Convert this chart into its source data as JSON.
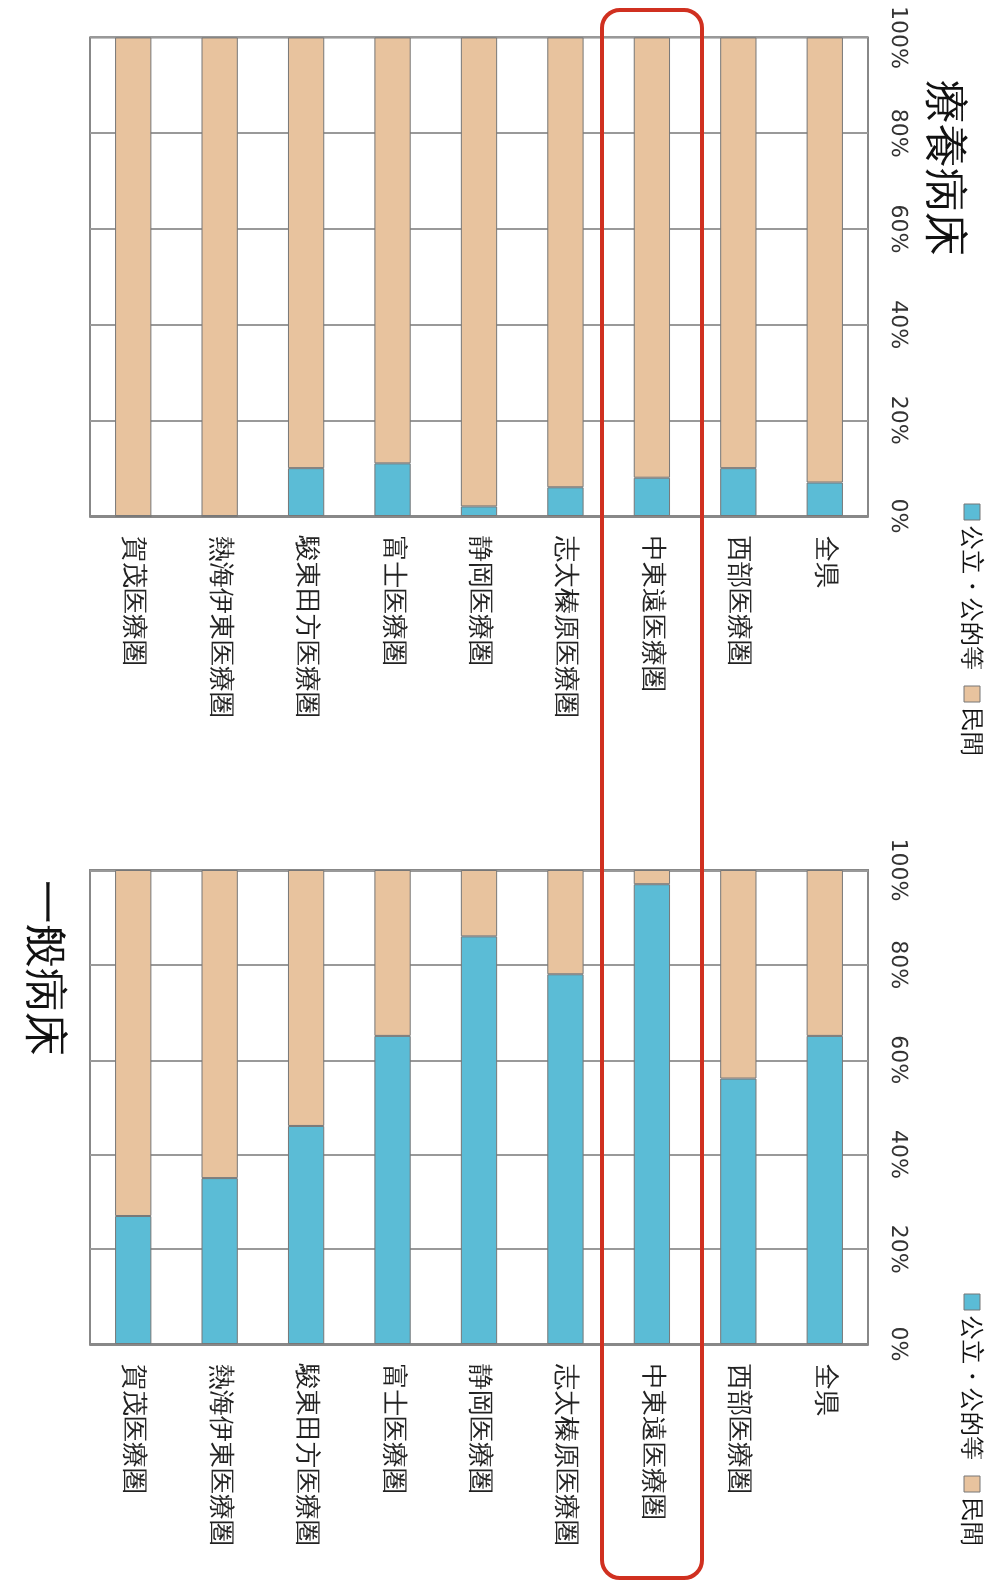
{
  "chart_data": [
    {
      "type": "bar",
      "title": "療養病床",
      "categories": [
        "賀茂医療圏",
        "熱海伊東医療圏",
        "駿東田方医療圏",
        "富士医療圏",
        "静岡医療圏",
        "志太榛原医療圏",
        "中東遠医療圏",
        "西部医療圏",
        "全県"
      ],
      "series": [
        {
          "name": "公立・公的等",
          "color": "#5bbcd6",
          "values": [
            0,
            0,
            10,
            11,
            2,
            6,
            8,
            10,
            7
          ]
        },
        {
          "name": "民間",
          "color": "#e8c39e",
          "values": [
            100,
            100,
            90,
            89,
            98,
            94,
            92,
            90,
            93
          ]
        }
      ],
      "stacked": true,
      "ylim": [
        0,
        100
      ],
      "yticks": [
        {
          "value": 0,
          "label": "0%"
        },
        {
          "value": 20,
          "label": "20%"
        },
        {
          "value": 40,
          "label": "40%"
        },
        {
          "value": 60,
          "label": "60%"
        },
        {
          "value": 80,
          "label": "80%"
        },
        {
          "value": 100,
          "label": "100%"
        }
      ],
      "grid": "y",
      "legend": "right"
    },
    {
      "type": "bar",
      "title": "一般病床",
      "categories": [
        "賀茂医療圏",
        "熱海伊東医療圏",
        "駿東田方医療圏",
        "富士医療圏",
        "静岡医療圏",
        "志太榛原医療圏",
        "中東遠医療圏",
        "西部医療圏",
        "全県"
      ],
      "series": [
        {
          "name": "公立・公的等",
          "color": "#5bbcd6",
          "values": [
            27,
            35,
            46,
            65,
            86,
            78,
            97,
            56,
            65
          ]
        },
        {
          "name": "民間",
          "color": "#e8c39e",
          "values": [
            73,
            65,
            54,
            35,
            14,
            22,
            3,
            44,
            35
          ]
        }
      ],
      "stacked": true,
      "ylim": [
        0,
        100
      ],
      "yticks": [
        {
          "value": 0,
          "label": "0%"
        },
        {
          "value": 20,
          "label": "20%"
        },
        {
          "value": 40,
          "label": "40%"
        },
        {
          "value": 60,
          "label": "60%"
        },
        {
          "value": 80,
          "label": "80%"
        },
        {
          "value": 100,
          "label": "100%"
        }
      ],
      "grid": "y",
      "legend": "right"
    }
  ]
}
